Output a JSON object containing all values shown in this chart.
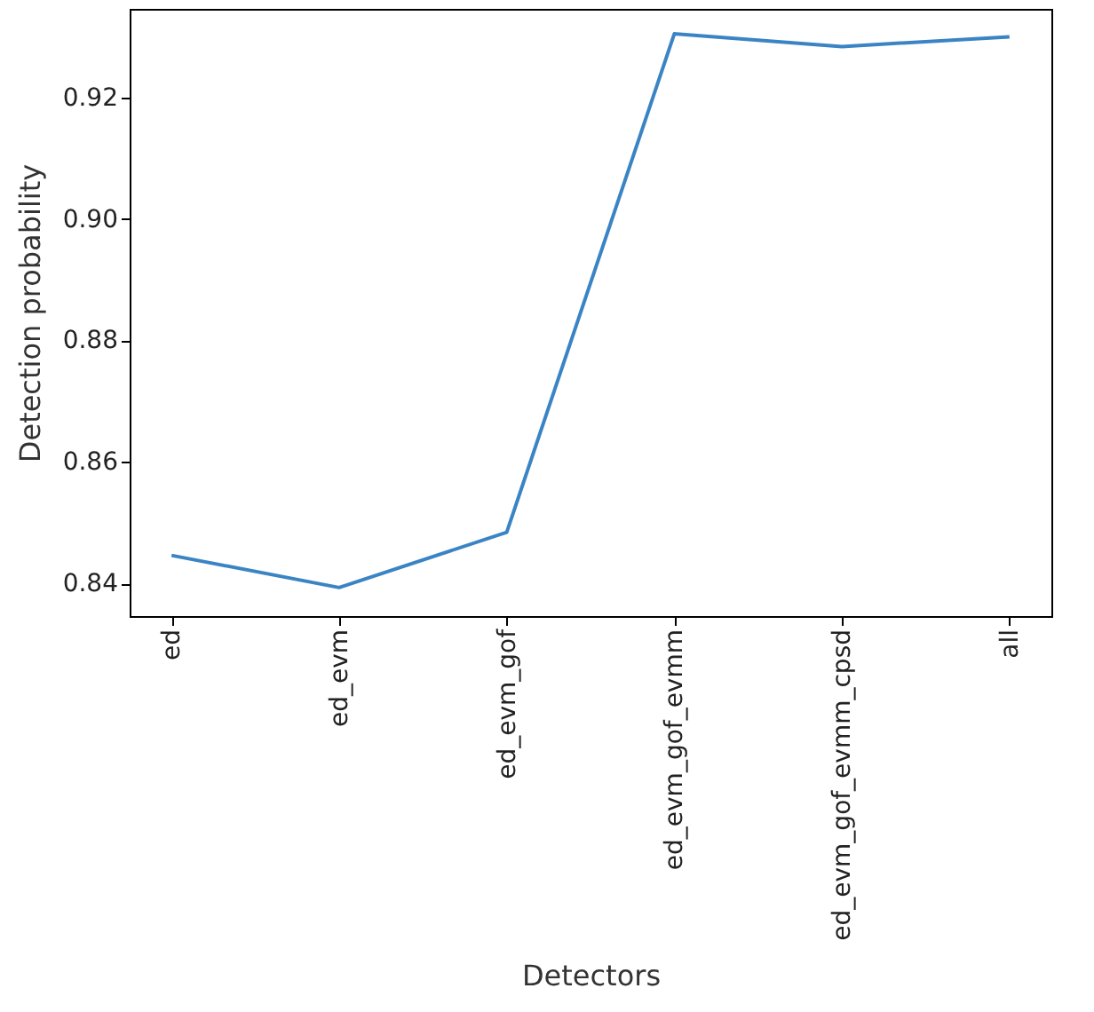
{
  "chart_data": {
    "type": "line",
    "xlabel": "Detectors",
    "ylabel": "Detection probability",
    "categories": [
      "ed",
      "ed_evm",
      "ed_evm_gof",
      "ed_evm_gof_evmm",
      "ed_evm_gof_evmm_cpsd",
      "all"
    ],
    "series": [
      {
        "color": "#3b84c4",
        "values": [
          0.8446,
          0.8393,
          0.8484,
          0.9305,
          0.9284,
          0.93
        ]
      }
    ],
    "ylim": [
      0.8346,
      0.9346
    ],
    "yticks": [
      0.84,
      0.86,
      0.88,
      {
        "value": 0.9,
        "label": "0.90"
      },
      0.92
    ],
    "grid": false,
    "legend": false
  }
}
